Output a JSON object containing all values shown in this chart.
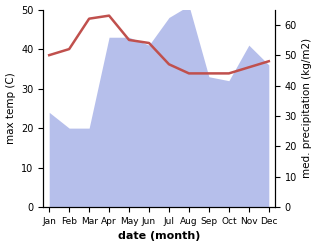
{
  "months": [
    "Jan",
    "Feb",
    "Mar",
    "Apr",
    "May",
    "Jun",
    "Jul",
    "Aug",
    "Sep",
    "Oct",
    "Nov",
    "Dec"
  ],
  "temp_max": [
    50,
    52,
    62,
    63,
    55,
    54,
    47,
    44,
    44,
    44,
    46,
    48
  ],
  "precipitation": [
    24,
    20,
    20,
    43,
    43,
    41,
    48,
    51,
    33,
    32,
    41,
    36
  ],
  "temp_color": "#c0504d",
  "precip_color": "#aab4e8",
  "xlabel": "date (month)",
  "ylabel_left": "max temp (C)",
  "ylabel_right": "med. precipitation (kg/m2)",
  "ylim_left": [
    0,
    50
  ],
  "ylim_right": [
    0,
    65
  ],
  "yticks_left": [
    0,
    10,
    20,
    30,
    40,
    50
  ],
  "yticks_right": [
    0,
    10,
    20,
    30,
    40,
    50,
    60
  ],
  "temp_ylim": [
    0,
    65
  ],
  "background_color": "#ffffff",
  "fig_width": 3.18,
  "fig_height": 2.47,
  "dpi": 100
}
